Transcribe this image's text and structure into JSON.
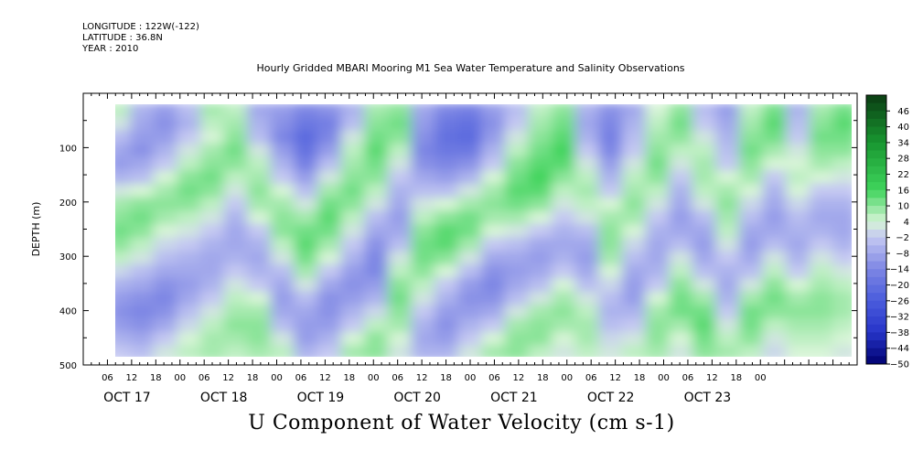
{
  "header": {
    "longitude": "LONGITUDE : 122W(-122)",
    "latitude": "LATITUDE : 36.8N",
    "year": "YEAR : 2010"
  },
  "title": "Hourly Gridded MBARI Mooring M1 Sea Water Temperature and Salinity Observations",
  "bottom_title": "U Component of Water Velocity (cm s-1)",
  "chart_data": {
    "type": "heatmap",
    "title": "Hourly Gridded MBARI Mooring M1 Sea Water Temperature and Salinity Observations",
    "xlabel": "",
    "ylabel": "DEPTH (m)",
    "variable": "U Component of Water Velocity (cm s-1)",
    "y_reversed": true,
    "ylim": [
      500,
      0
    ],
    "data_depth_range": [
      20,
      490
    ],
    "y_ticks": [
      100,
      200,
      300,
      400,
      500
    ],
    "x_range_hours": [
      "OCT 16 00",
      "OCT 24 00"
    ],
    "x_hour_ticks": [
      "06",
      "12",
      "18",
      "00",
      "06",
      "12",
      "18",
      "00",
      "06",
      "12",
      "18",
      "00",
      "06",
      "12",
      "18",
      "00",
      "06",
      "12",
      "18",
      "00",
      "06",
      "12",
      "18",
      "00",
      "06",
      "12",
      "18",
      "00"
    ],
    "x_day_labels": [
      "OCT 17",
      "OCT 18",
      "OCT 19",
      "OCT 20",
      "OCT 21",
      "OCT 22",
      "OCT 23"
    ],
    "colorbar_levels": [
      46,
      40,
      34,
      28,
      22,
      16,
      10,
      4,
      -2,
      -8,
      -14,
      -20,
      -26,
      -32,
      -38,
      -44,
      -50
    ],
    "colorbar_range": [
      -50,
      52
    ],
    "colors": {
      "positive": "#3fd45c",
      "light_positive": "#c5f0c8",
      "light_negative": "#c4c8f2",
      "negative": "#7d86e0",
      "strong_negative": "#4a5ad8",
      "deep_negative": "#000070",
      "deep_positive": "#0b3d12"
    },
    "time_columns_hours": [
      6,
      12,
      18,
      24,
      30,
      36,
      42,
      48,
      54,
      60,
      66,
      72,
      78,
      84,
      90,
      96,
      102,
      108,
      114,
      120,
      126,
      132,
      138,
      144,
      150,
      156,
      162,
      168,
      174,
      180,
      186,
      192
    ],
    "depth_rows_m": [
      25,
      50,
      75,
      100,
      125,
      150,
      175,
      200,
      225,
      250,
      275,
      300,
      325,
      350,
      375,
      400,
      425,
      450,
      475
    ],
    "values": [
      [
        6,
        -6,
        -10,
        -4,
        8,
        6,
        -8,
        -10,
        -14,
        -12,
        -6,
        8,
        10,
        -8,
        -14,
        -16,
        -10,
        -4,
        6,
        10,
        -6,
        -12,
        -8,
        4,
        10,
        -4,
        -10,
        6,
        12,
        -6,
        8,
        12
      ],
      [
        2,
        -8,
        -12,
        -6,
        6,
        8,
        -6,
        -12,
        -18,
        -16,
        -4,
        10,
        12,
        -10,
        -18,
        -20,
        -12,
        -2,
        8,
        12,
        -8,
        -14,
        -6,
        6,
        12,
        -2,
        -8,
        8,
        14,
        -4,
        10,
        14
      ],
      [
        -4,
        -10,
        -10,
        -2,
        4,
        10,
        -4,
        -14,
        -22,
        -14,
        2,
        12,
        10,
        -12,
        -20,
        -22,
        -10,
        2,
        10,
        14,
        -6,
        -16,
        -4,
        8,
        10,
        2,
        -6,
        10,
        12,
        -2,
        12,
        12
      ],
      [
        -8,
        -12,
        -6,
        2,
        8,
        12,
        2,
        -10,
        -20,
        -10,
        6,
        14,
        6,
        -14,
        -18,
        -18,
        -6,
        6,
        12,
        16,
        -2,
        -14,
        -2,
        10,
        6,
        6,
        -4,
        12,
        8,
        2,
        10,
        10
      ],
      [
        -10,
        -8,
        -2,
        6,
        10,
        10,
        6,
        -6,
        -16,
        -4,
        8,
        12,
        2,
        -12,
        -14,
        -12,
        -2,
        10,
        14,
        14,
        2,
        -10,
        2,
        12,
        2,
        8,
        -2,
        10,
        4,
        4,
        8,
        6
      ],
      [
        -6,
        -4,
        4,
        10,
        12,
        6,
        8,
        -2,
        -10,
        2,
        10,
        10,
        -2,
        -8,
        -10,
        -6,
        4,
        12,
        16,
        10,
        6,
        -6,
        6,
        10,
        -2,
        8,
        4,
        8,
        -2,
        6,
        4,
        2
      ],
      [
        2,
        4,
        8,
        12,
        10,
        2,
        10,
        4,
        -4,
        8,
        12,
        6,
        -6,
        -4,
        -4,
        2,
        8,
        14,
        14,
        6,
        8,
        -2,
        8,
        6,
        -6,
        6,
        8,
        4,
        -6,
        4,
        -2,
        -2
      ],
      [
        8,
        10,
        10,
        10,
        6,
        -2,
        8,
        8,
        2,
        12,
        10,
        2,
        -8,
        2,
        4,
        8,
        10,
        12,
        10,
        2,
        6,
        4,
        10,
        2,
        -8,
        2,
        10,
        0,
        -8,
        0,
        -6,
        -6
      ],
      [
        10,
        12,
        8,
        6,
        2,
        -6,
        4,
        10,
        8,
        14,
        6,
        -4,
        -10,
        6,
        10,
        12,
        8,
        8,
        4,
        -2,
        2,
        8,
        8,
        -2,
        -10,
        -4,
        8,
        -4,
        -10,
        -4,
        -8,
        -8
      ],
      [
        12,
        10,
        4,
        2,
        -2,
        -8,
        -2,
        10,
        12,
        12,
        2,
        -8,
        -8,
        10,
        14,
        12,
        4,
        2,
        -2,
        -6,
        -4,
        10,
        4,
        -6,
        -8,
        -8,
        6,
        -8,
        -8,
        -6,
        -6,
        -8
      ],
      [
        10,
        6,
        0,
        -2,
        -6,
        -8,
        -6,
        6,
        14,
        8,
        -2,
        -12,
        -4,
        12,
        14,
        8,
        -2,
        -4,
        -8,
        -8,
        -8,
        10,
        0,
        -8,
        -4,
        -10,
        2,
        -10,
        -4,
        -8,
        -2,
        -6
      ],
      [
        6,
        2,
        -4,
        -6,
        -8,
        -6,
        -8,
        2,
        12,
        4,
        -6,
        -14,
        2,
        12,
        10,
        2,
        -8,
        -8,
        -10,
        -6,
        -10,
        8,
        -4,
        -8,
        2,
        -8,
        -2,
        -8,
        2,
        -6,
        2,
        -2
      ],
      [
        0,
        -4,
        -8,
        -8,
        -8,
        -2,
        -6,
        -4,
        8,
        -2,
        -10,
        -14,
        6,
        10,
        4,
        -4,
        -12,
        -10,
        -8,
        -2,
        -8,
        4,
        -8,
        -6,
        6,
        -4,
        -6,
        -4,
        6,
        -2,
        6,
        2
      ],
      [
        -6,
        -8,
        -12,
        -10,
        -6,
        2,
        -2,
        -8,
        2,
        -8,
        -12,
        -10,
        10,
        6,
        -2,
        -10,
        -14,
        -8,
        -4,
        4,
        -4,
        0,
        -10,
        -2,
        10,
        2,
        -8,
        2,
        10,
        4,
        8,
        6
      ],
      [
        -10,
        -12,
        -14,
        -8,
        -2,
        6,
        4,
        -10,
        -4,
        -12,
        -10,
        -6,
        12,
        2,
        -6,
        -12,
        -12,
        -4,
        2,
        8,
        2,
        -4,
        -10,
        4,
        12,
        8,
        -6,
        8,
        12,
        8,
        10,
        8
      ],
      [
        -12,
        -14,
        -12,
        -4,
        2,
        8,
        8,
        -8,
        -8,
        -12,
        -6,
        0,
        10,
        -2,
        -10,
        -10,
        -8,
        2,
        8,
        10,
        6,
        -6,
        -6,
        8,
        12,
        12,
        -2,
        12,
        10,
        10,
        10,
        8
      ],
      [
        -10,
        -12,
        -8,
        0,
        6,
        10,
        10,
        -4,
        -10,
        -10,
        -2,
        6,
        8,
        -6,
        -12,
        -6,
        -2,
        8,
        10,
        8,
        8,
        -4,
        -2,
        10,
        8,
        14,
        2,
        12,
        6,
        8,
        8,
        6
      ],
      [
        -6,
        -8,
        -2,
        4,
        8,
        8,
        10,
        2,
        -10,
        -6,
        4,
        10,
        4,
        -8,
        -10,
        -2,
        4,
        10,
        10,
        4,
        8,
        0,
        2,
        10,
        4,
        12,
        6,
        10,
        2,
        6,
        6,
        4
      ],
      [
        -2,
        -4,
        2,
        6,
        8,
        6,
        8,
        6,
        -6,
        -2,
        8,
        10,
        2,
        -6,
        -6,
        2,
        8,
        10,
        6,
        2,
        6,
        2,
        6,
        8,
        2,
        10,
        8,
        6,
        0,
        4,
        4,
        2
      ]
    ]
  }
}
